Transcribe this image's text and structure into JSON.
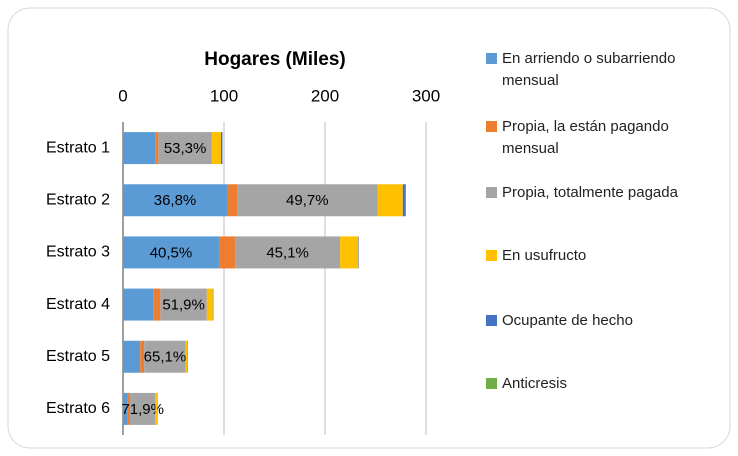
{
  "chart_data": {
    "type": "stacked-bar-horizontal",
    "title": "Hogares (Miles)",
    "categories": [
      "Estrato 1",
      "Estrato 2",
      "Estrato 3",
      "Estrato 4",
      "Estrato 5",
      "Estrato 6"
    ],
    "xlim": [
      0,
      300
    ],
    "xticks": [
      0,
      100,
      200,
      300
    ],
    "grid": true,
    "legend": "right",
    "series": [
      {
        "name": "En arriendo o subarriendo mensual",
        "color": "#5b9bd5",
        "values": [
          32,
          103,
          95,
          30,
          17,
          4
        ],
        "share_labels": [
          null,
          "36,8%",
          "40,5%",
          null,
          null,
          null
        ]
      },
      {
        "name": "Propia, la están pagando mensual",
        "color": "#ed7d31",
        "values": [
          3,
          10,
          16,
          7,
          4,
          3
        ],
        "share_labels": [
          null,
          null,
          null,
          null,
          null,
          null
        ]
      },
      {
        "name": "Propia, totalmente pagada",
        "color": "#a5a5a5",
        "values": [
          53,
          139,
          104,
          46,
          41,
          25
        ],
        "share_labels": [
          "53,3%",
          "49,7%",
          "45,1%",
          "51,9%",
          "65,1%",
          "71,9%"
        ]
      },
      {
        "name": "En usufructo",
        "color": "#ffc000",
        "values": [
          9,
          25,
          18,
          6,
          2,
          2
        ],
        "share_labels": [
          null,
          null,
          null,
          null,
          null,
          null
        ]
      },
      {
        "name": "Ocupante de hecho",
        "color": "#4472c4",
        "values": [
          1.5,
          3,
          0.5,
          0.5,
          0.3,
          0.3
        ],
        "share_labels": [
          null,
          null,
          null,
          null,
          null,
          null
        ]
      },
      {
        "name": "Anticresis",
        "color": "#70ad47",
        "values": [
          0,
          0,
          0,
          0,
          0,
          0
        ],
        "share_labels": [
          null,
          null,
          null,
          null,
          null,
          null
        ]
      }
    ]
  }
}
